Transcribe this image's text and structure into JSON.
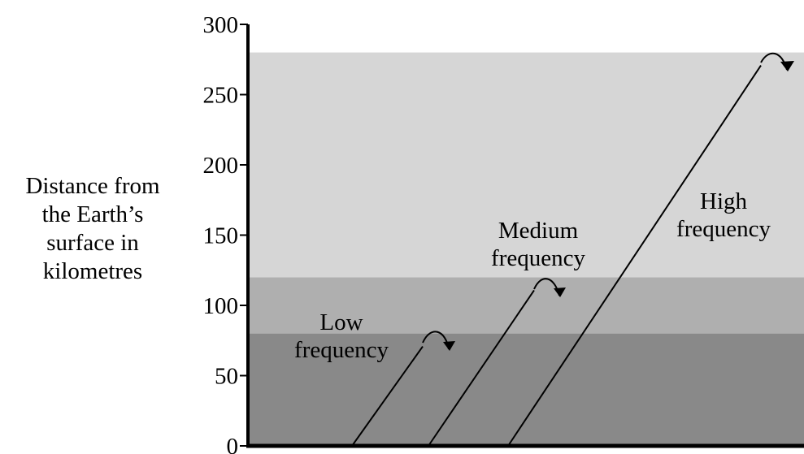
{
  "axis": {
    "ylabel_lines": [
      "Distance from",
      "the Earth’s",
      "surface in",
      "kilometres"
    ],
    "ymin": 0,
    "ymax": 300,
    "ticks": [
      0,
      50,
      100,
      150,
      200,
      250,
      300
    ]
  },
  "layers": [
    {
      "from_km": 0,
      "to_km": 80,
      "color": "#898989"
    },
    {
      "from_km": 80,
      "to_km": 120,
      "color": "#afafaf"
    },
    {
      "from_km": 120,
      "to_km": 280,
      "color": "#d6d6d6"
    }
  ],
  "waves": [
    {
      "label_lines": [
        "Low",
        "frequency"
      ],
      "reflection_km": 80
    },
    {
      "label_lines": [
        "Medium",
        "frequency"
      ],
      "reflection_km": 120
    },
    {
      "label_lines": [
        "High",
        "frequency"
      ],
      "reflection_km": 280
    }
  ],
  "colors": {
    "axis": "#000000",
    "background": "#ffffff"
  }
}
